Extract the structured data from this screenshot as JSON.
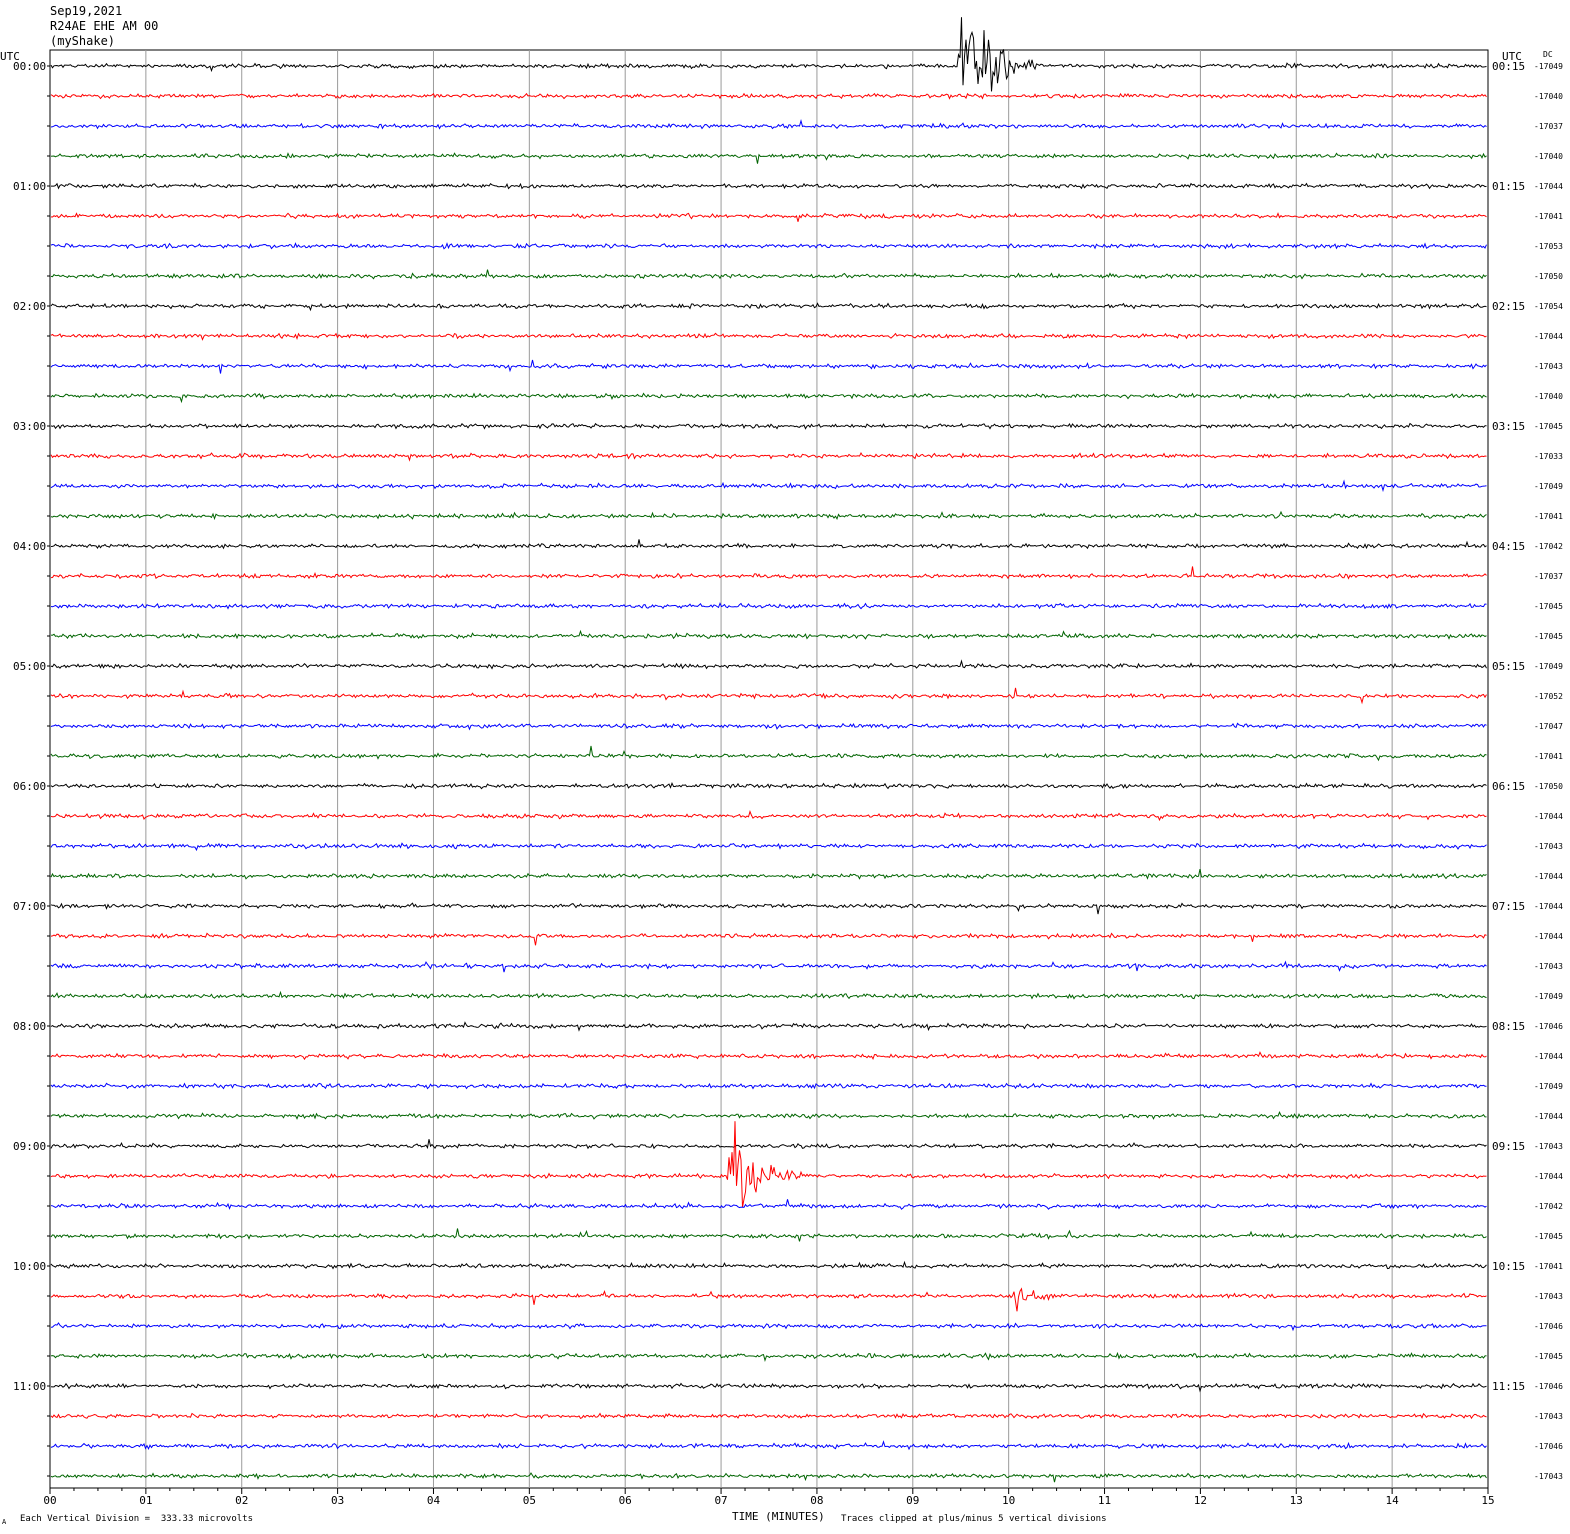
{
  "header": {
    "date": "Sep19,2021",
    "station": "R24AE EHE AM 00",
    "network": "(myShake)"
  },
  "labels": {
    "utc_left": "UTC",
    "utc_right": "UTC",
    "dc": "DC"
  },
  "footer": {
    "scale_note": "Each Vertical Division =  333.33 microvolts",
    "clip_note": "Traces clipped at plus/minus 5 vertical divisions",
    "corner_mark": "A"
  },
  "chart_data": {
    "type": "line",
    "title": "",
    "xlabel": "TIME (MINUTES)",
    "ylabel": "",
    "x_range": [
      0,
      15
    ],
    "x_ticks": [
      "00",
      "01",
      "02",
      "03",
      "04",
      "05",
      "06",
      "07",
      "08",
      "09",
      "10",
      "11",
      "12",
      "13",
      "14",
      "15"
    ],
    "trace_colors": [
      "#000000",
      "#ff0000",
      "#0000ff",
      "#006400"
    ],
    "rows_per_hour": 4,
    "hour_labels_left": [
      "00:00",
      "01:00",
      "02:00",
      "03:00",
      "04:00",
      "05:00",
      "06:00",
      "07:00",
      "08:00",
      "09:00",
      "10:00",
      "11:00"
    ],
    "hour_labels_right": [
      "00:15",
      "01:15",
      "02:15",
      "03:15",
      "04:15",
      "05:15",
      "06:15",
      "07:15",
      "08:15",
      "09:15",
      "10:15",
      "11:15"
    ],
    "dc_offsets": [
      "-17049",
      "-17040",
      "-17037",
      "-17040",
      "-17044",
      "-17041",
      "-17053",
      "-17050",
      "-17054",
      "-17044",
      "-17043",
      "-17040",
      "-17045",
      "-17033",
      "-17049",
      "-17041",
      "-17042",
      "-17037",
      "-17045",
      "-17045",
      "-17049",
      "-17052",
      "-17047",
      "-17041",
      "-17050",
      "-17044",
      "-17043",
      "-17044",
      "-17044",
      "-17044",
      "-17043",
      "-17049",
      "-17046",
      "-17044",
      "-17049",
      "-17044",
      "-17043",
      "-17044",
      "-17042",
      "-17045",
      "-17041",
      "-17043",
      "-17046",
      "-17045",
      "-17046",
      "-17043",
      "-17046",
      "-17043"
    ],
    "events": [
      {
        "row": 0,
        "minute": 9.5,
        "amplitude": 5,
        "duration_min": 1.0
      },
      {
        "row": 37,
        "minute": 7.1,
        "amplitude": 4,
        "duration_min": 0.9
      },
      {
        "row": 41,
        "minute": 10.05,
        "amplitude": 1.2,
        "duration_min": 0.6
      }
    ]
  }
}
